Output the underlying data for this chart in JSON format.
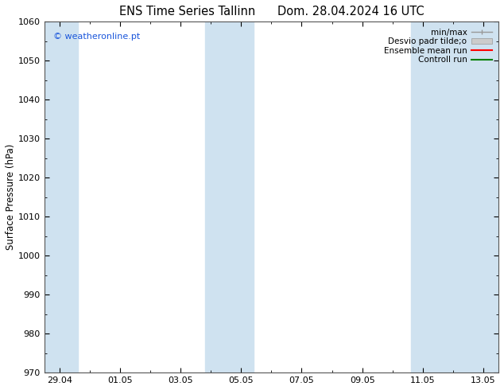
{
  "title_left": "ENS Time Series Tallinn",
  "title_right": "Dom. 28.04.2024 16 UTC",
  "ylabel": "Surface Pressure (hPa)",
  "ylim": [
    970,
    1060
  ],
  "yticks": [
    970,
    980,
    990,
    1000,
    1010,
    1020,
    1030,
    1040,
    1050,
    1060
  ],
  "xlim_start": -0.5,
  "xlim_end": 14.5,
  "xtick_labels": [
    "29.04",
    "01.05",
    "03.05",
    "05.05",
    "07.05",
    "09.05",
    "11.05",
    "13.05"
  ],
  "xtick_positions": [
    0,
    2,
    4,
    6,
    8,
    10,
    12,
    14
  ],
  "background_color": "#ffffff",
  "plot_bg_color": "#ffffff",
  "shaded_bands": [
    {
      "x_start": -0.5,
      "x_end": 0.6,
      "color": "#cfe2f0"
    },
    {
      "x_start": 4.8,
      "x_end": 6.4,
      "color": "#cfe2f0"
    },
    {
      "x_start": 11.6,
      "x_end": 14.5,
      "color": "#cfe2f0"
    }
  ],
  "legend_labels": [
    "min/max",
    "Desvio padr tilde;o",
    "Ensemble mean run",
    "Controll run"
  ],
  "legend_colors": [
    "#aaaaaa",
    "#cccccc",
    "#ff0000",
    "#008000"
  ],
  "watermark": "© weatheronline.pt",
  "watermark_color": "#1a56db",
  "title_fontsize": 10.5,
  "label_fontsize": 8.5,
  "tick_fontsize": 8,
  "legend_fontsize": 7.5
}
